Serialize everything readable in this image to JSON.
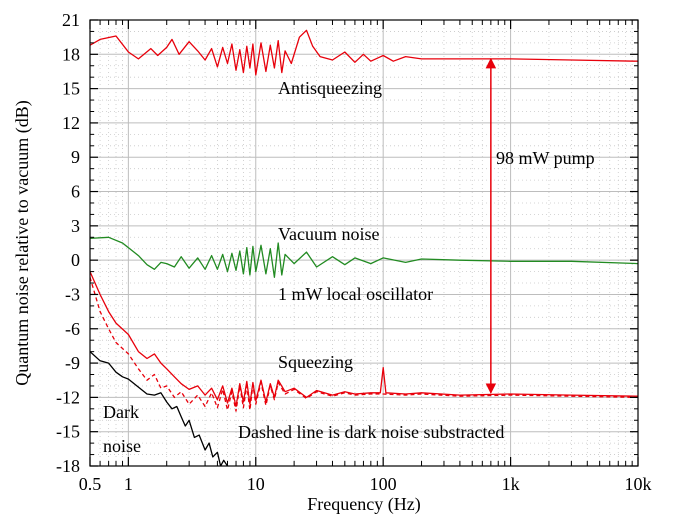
{
  "chart_data": {
    "type": "line",
    "xlabel": "Frequency (Hz)",
    "ylabel": "Quantum noise relative to vacuum (dB)",
    "xscale": "log",
    "xlim": [
      0.5,
      10000
    ],
    "ylim": [
      -18,
      21
    ],
    "grid": true,
    "x_ticks": [
      {
        "value": 0.5,
        "label": "0.5"
      },
      {
        "value": 1,
        "label": "1"
      },
      {
        "value": 10,
        "label": "10"
      },
      {
        "value": 100,
        "label": "100"
      },
      {
        "value": 1000,
        "label": "1k"
      },
      {
        "value": 10000,
        "label": "10k"
      }
    ],
    "y_ticks": [
      {
        "value": -18,
        "label": "-18"
      },
      {
        "value": -15,
        "label": "-15"
      },
      {
        "value": -12,
        "label": "-12"
      },
      {
        "value": -9,
        "label": "-9"
      },
      {
        "value": -6,
        "label": "-6"
      },
      {
        "value": -3,
        "label": "-3"
      },
      {
        "value": 0,
        "label": "0"
      },
      {
        "value": 3,
        "label": "3"
      },
      {
        "value": 6,
        "label": "6"
      },
      {
        "value": 9,
        "label": "9"
      },
      {
        "value": 12,
        "label": "12"
      },
      {
        "value": 15,
        "label": "15"
      },
      {
        "value": 18,
        "label": "18"
      },
      {
        "value": 21,
        "label": "21"
      }
    ],
    "series": [
      {
        "color": "#e8000b",
        "style": "solid",
        "points": [
          [
            0.5,
            18.8
          ],
          [
            0.6,
            19.3
          ],
          [
            0.8,
            19.6
          ],
          [
            1.0,
            18.2
          ],
          [
            1.2,
            17.6
          ],
          [
            1.5,
            18.5
          ],
          [
            1.7,
            17.9
          ],
          [
            2.0,
            18.6
          ],
          [
            2.2,
            19.3
          ],
          [
            2.5,
            18.0
          ],
          [
            3.0,
            19.1
          ],
          [
            3.5,
            18.3
          ],
          [
            4.0,
            17.5
          ],
          [
            4.5,
            18.5
          ],
          [
            5.0,
            16.9
          ],
          [
            5.5,
            18.6
          ],
          [
            6.0,
            17.2
          ],
          [
            6.5,
            18.9
          ],
          [
            7.0,
            16.6
          ],
          [
            7.5,
            18.4
          ],
          [
            8.0,
            16.4
          ],
          [
            8.5,
            18.7
          ],
          [
            9.0,
            16.8
          ],
          [
            9.5,
            18.9
          ],
          [
            10.0,
            16.2
          ],
          [
            11.0,
            19.0
          ],
          [
            12.0,
            16.5
          ],
          [
            13.0,
            18.8
          ],
          [
            14.0,
            16.8
          ],
          [
            15.0,
            19.2
          ],
          [
            16.0,
            16.4
          ],
          [
            17.0,
            18.3
          ],
          [
            19.0,
            17.2
          ],
          [
            22.0,
            19.5
          ],
          [
            25.0,
            20.1
          ],
          [
            28.0,
            18.7
          ],
          [
            32.0,
            17.8
          ],
          [
            40.0,
            17.5
          ],
          [
            50.0,
            18.2
          ],
          [
            60.0,
            17.3
          ],
          [
            70.0,
            18.0
          ],
          [
            80.0,
            17.4
          ],
          [
            100.0,
            17.9
          ],
          [
            120.0,
            17.4
          ],
          [
            150.0,
            17.8
          ],
          [
            200.0,
            17.6
          ],
          [
            400.0,
            17.6
          ],
          [
            1000.0,
            17.6
          ],
          [
            3000.0,
            17.5
          ],
          [
            10000.0,
            17.4
          ]
        ]
      },
      {
        "color": "#228b22",
        "style": "solid",
        "points": [
          [
            0.5,
            1.9
          ],
          [
            0.7,
            2.0
          ],
          [
            0.9,
            1.5
          ],
          [
            1.2,
            0.4
          ],
          [
            1.4,
            -0.4
          ],
          [
            1.6,
            -0.8
          ],
          [
            1.8,
            -0.2
          ],
          [
            2.0,
            -0.3
          ],
          [
            2.3,
            -0.6
          ],
          [
            2.6,
            0.3
          ],
          [
            3.0,
            -0.7
          ],
          [
            3.5,
            0.2
          ],
          [
            4.0,
            -0.8
          ],
          [
            4.5,
            0.4
          ],
          [
            5.0,
            -0.8
          ],
          [
            5.5,
            0.5
          ],
          [
            6.0,
            -1.0
          ],
          [
            6.5,
            0.6
          ],
          [
            7.0,
            -0.9
          ],
          [
            7.5,
            0.8
          ],
          [
            8.0,
            -1.2
          ],
          [
            8.5,
            1.1
          ],
          [
            9.0,
            -1.3
          ],
          [
            9.5,
            1.2
          ],
          [
            10.0,
            -1.0
          ],
          [
            11.0,
            1.3
          ],
          [
            12.0,
            -1.2
          ],
          [
            13.0,
            1.0
          ],
          [
            14.0,
            -1.5
          ],
          [
            15.0,
            1.5
          ],
          [
            16.0,
            -1.3
          ],
          [
            17.0,
            0.5
          ],
          [
            20.0,
            -0.3
          ],
          [
            25.0,
            0.7
          ],
          [
            30.0,
            -0.6
          ],
          [
            40.0,
            0.3
          ],
          [
            50.0,
            -0.4
          ],
          [
            60.0,
            0.2
          ],
          [
            80.0,
            -0.3
          ],
          [
            100.0,
            0.2
          ],
          [
            150.0,
            -0.2
          ],
          [
            200.0,
            0.1
          ],
          [
            400.0,
            0.0
          ],
          [
            1000.0,
            -0.1
          ],
          [
            3000.0,
            -0.1
          ],
          [
            10000.0,
            -0.3
          ]
        ]
      },
      {
        "color": "#e8000b",
        "style": "solid",
        "points": [
          [
            0.5,
            -1.0
          ],
          [
            0.6,
            -3.0
          ],
          [
            0.7,
            -4.5
          ],
          [
            0.8,
            -5.5
          ],
          [
            1.0,
            -6.5
          ],
          [
            1.2,
            -8.0
          ],
          [
            1.4,
            -8.6
          ],
          [
            1.6,
            -8.2
          ],
          [
            1.8,
            -9.0
          ],
          [
            2.0,
            -9.5
          ],
          [
            2.3,
            -10.2
          ],
          [
            2.6,
            -10.8
          ],
          [
            3.0,
            -11.3
          ],
          [
            3.5,
            -11.0
          ],
          [
            4.0,
            -11.8
          ],
          [
            4.5,
            -11.2
          ],
          [
            5.0,
            -12.2
          ],
          [
            5.5,
            -11.0
          ],
          [
            6.0,
            -12.5
          ],
          [
            6.5,
            -11.2
          ],
          [
            7.0,
            -12.8
          ],
          [
            7.5,
            -10.8
          ],
          [
            8.0,
            -12.4
          ],
          [
            8.5,
            -10.6
          ],
          [
            9.0,
            -12.6
          ],
          [
            9.5,
            -10.7
          ],
          [
            10.0,
            -12.3
          ],
          [
            11.0,
            -10.5
          ],
          [
            12.0,
            -12.4
          ],
          [
            13.0,
            -10.8
          ],
          [
            14.0,
            -12.0
          ],
          [
            15.0,
            -10.5
          ],
          [
            17.0,
            -11.5
          ],
          [
            20.0,
            -11.2
          ],
          [
            25.0,
            -12.0
          ],
          [
            30.0,
            -11.4
          ],
          [
            40.0,
            -11.8
          ],
          [
            50.0,
            -11.5
          ],
          [
            60.0,
            -11.7
          ],
          [
            80.0,
            -11.6
          ],
          [
            95.0,
            -11.6
          ],
          [
            100.0,
            -9.4
          ],
          [
            105.0,
            -11.6
          ],
          [
            150.0,
            -11.7
          ],
          [
            200.0,
            -11.6
          ],
          [
            400.0,
            -11.8
          ],
          [
            1000.0,
            -11.7
          ],
          [
            3000.0,
            -11.8
          ],
          [
            10000.0,
            -11.9
          ]
        ]
      },
      {
        "color": "#e8000b",
        "style": "dashed",
        "points": [
          [
            0.5,
            -1.5
          ],
          [
            0.6,
            -4.5
          ],
          [
            0.7,
            -6.0
          ],
          [
            0.8,
            -7.2
          ],
          [
            1.0,
            -8.2
          ],
          [
            1.2,
            -9.5
          ],
          [
            1.4,
            -10.5
          ],
          [
            1.6,
            -10.0
          ],
          [
            1.8,
            -11.2
          ],
          [
            2.0,
            -11.0
          ],
          [
            2.3,
            -12.0
          ],
          [
            2.6,
            -11.5
          ],
          [
            3.0,
            -12.6
          ],
          [
            3.5,
            -11.8
          ],
          [
            4.0,
            -12.8
          ],
          [
            4.5,
            -11.6
          ],
          [
            5.0,
            -12.9
          ],
          [
            5.5,
            -11.3
          ],
          [
            6.0,
            -13.1
          ],
          [
            6.5,
            -11.5
          ],
          [
            7.0,
            -13.2
          ],
          [
            7.5,
            -11.0
          ],
          [
            8.0,
            -12.9
          ],
          [
            8.5,
            -11.0
          ],
          [
            9.0,
            -13.1
          ],
          [
            9.5,
            -10.9
          ],
          [
            10.0,
            -12.6
          ],
          [
            11.0,
            -10.7
          ],
          [
            12.0,
            -12.7
          ],
          [
            13.0,
            -11.0
          ],
          [
            14.0,
            -12.2
          ],
          [
            15.0,
            -10.7
          ],
          [
            17.0,
            -11.7
          ],
          [
            20.0,
            -11.3
          ],
          [
            25.0,
            -12.1
          ],
          [
            30.0,
            -11.5
          ],
          [
            40.0,
            -11.9
          ],
          [
            50.0,
            -11.6
          ],
          [
            60.0,
            -11.8
          ],
          [
            80.0,
            -11.7
          ],
          [
            100.0,
            -11.7
          ],
          [
            150.0,
            -11.8
          ],
          [
            200.0,
            -11.7
          ],
          [
            400.0,
            -11.9
          ],
          [
            1000.0,
            -11.8
          ],
          [
            3000.0,
            -11.9
          ],
          [
            10000.0,
            -12.0
          ]
        ]
      },
      {
        "color": "#000000",
        "style": "solid",
        "points": [
          [
            0.5,
            -8.0
          ],
          [
            0.6,
            -8.8
          ],
          [
            0.7,
            -9.0
          ],
          [
            0.8,
            -9.8
          ],
          [
            0.9,
            -10.2
          ],
          [
            1.0,
            -10.4
          ],
          [
            1.2,
            -11.1
          ],
          [
            1.4,
            -11.7
          ],
          [
            1.6,
            -11.8
          ],
          [
            1.8,
            -11.6
          ],
          [
            2.0,
            -12.4
          ],
          [
            2.2,
            -13.0
          ],
          [
            2.4,
            -12.8
          ],
          [
            2.6,
            -13.7
          ],
          [
            2.8,
            -14.5
          ],
          [
            3.0,
            -14.0
          ],
          [
            3.3,
            -15.5
          ],
          [
            3.6,
            -15.3
          ],
          [
            4.0,
            -16.6
          ],
          [
            4.3,
            -16.0
          ],
          [
            4.6,
            -17.2
          ],
          [
            5.0,
            -16.8
          ],
          [
            5.3,
            -18.0
          ],
          [
            5.6,
            -17.5
          ],
          [
            6.0,
            -18.0
          ]
        ]
      }
    ],
    "annotations": [
      {
        "text": "Antisqueezing"
      },
      {
        "text": "98 mW pump"
      },
      {
        "text": "Vacuum noise"
      },
      {
        "text": "1 mW local oscillator"
      },
      {
        "text": "Squeezing"
      },
      {
        "text": "Dark"
      },
      {
        "text": "noise"
      },
      {
        "text": "Dashed line is dark noise substracted"
      }
    ],
    "arrow": {
      "x": 700,
      "y_from": 17.6,
      "y_to": -11.6,
      "color": "#e8000b"
    }
  }
}
